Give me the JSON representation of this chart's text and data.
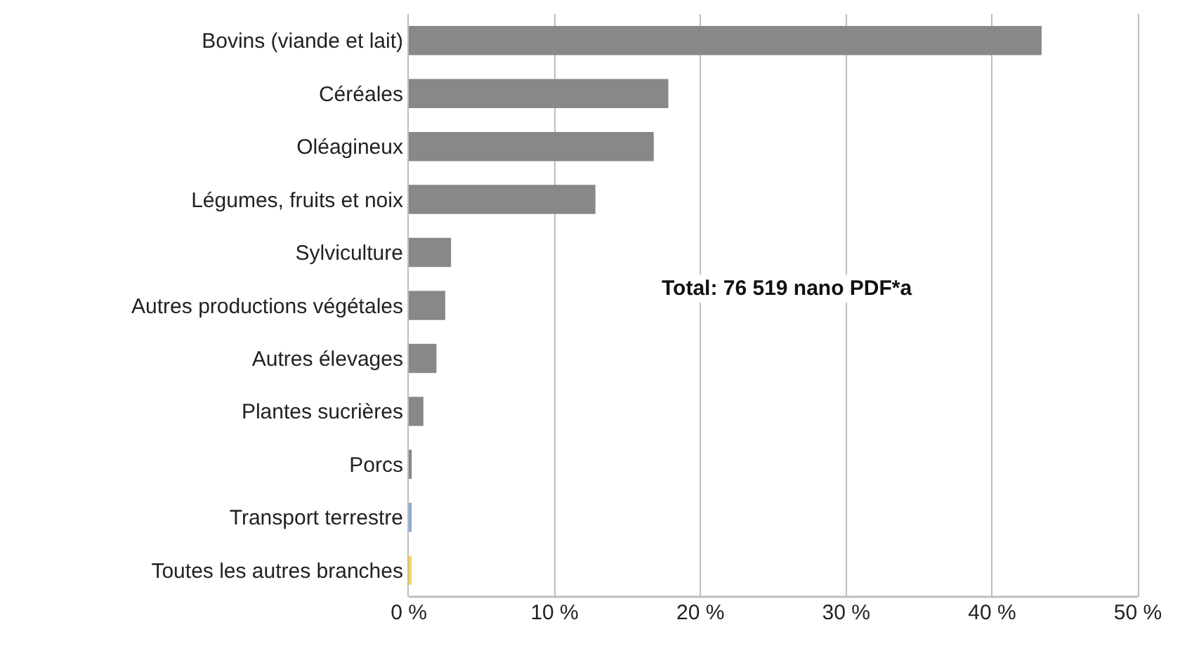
{
  "chart_data": {
    "type": "bar",
    "orientation": "horizontal",
    "categories": [
      "Bovins (viande et lait)",
      "Céréales",
      "Oléagineux",
      "Légumes, fruits et noix",
      "Sylviculture",
      "Autres productions végétales",
      "Autres élevages",
      "Plantes sucrières",
      "Porcs",
      "Transport terrestre",
      "Toutes les autres branches"
    ],
    "values": [
      43.4,
      17.8,
      16.8,
      12.8,
      2.9,
      2.5,
      1.9,
      1.0,
      0.2,
      0.2,
      0.2
    ],
    "colors": [
      "#878887",
      "#878887",
      "#878887",
      "#878887",
      "#878887",
      "#878887",
      "#878887",
      "#878887",
      "#878887",
      "#8eaadb",
      "#ffd54f"
    ],
    "xlim": [
      0,
      50
    ],
    "xticks": [
      {
        "value": 0,
        "label": "0 %"
      },
      {
        "value": 10,
        "label": "10 %"
      },
      {
        "value": 20,
        "label": "20 %"
      },
      {
        "value": 30,
        "label": "30 %"
      },
      {
        "value": 40,
        "label": "40 %"
      },
      {
        "value": 50,
        "label": "50 %"
      }
    ],
    "grid": "x",
    "annotations": [
      "Total: 76 519 nano PDF*a"
    ]
  }
}
